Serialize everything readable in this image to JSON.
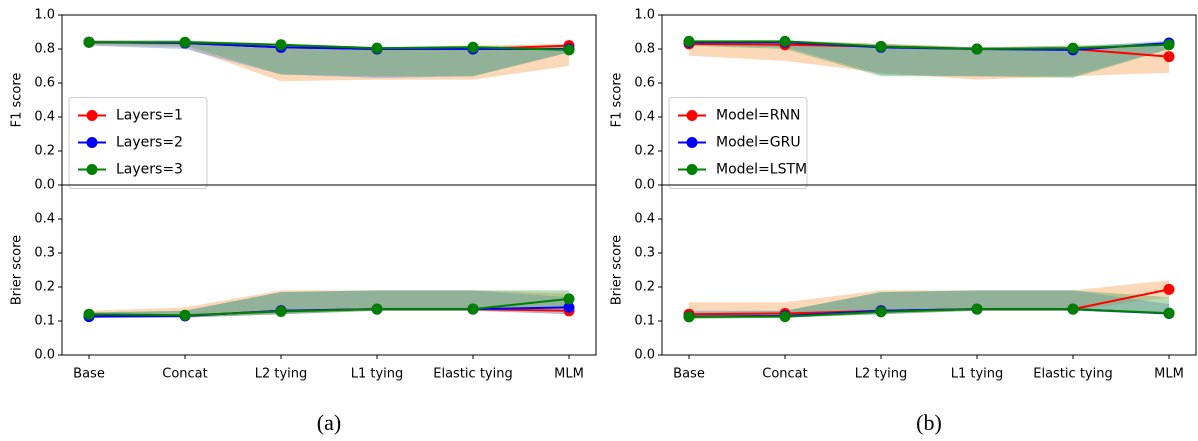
{
  "chart_data": [
    {
      "type": "line",
      "caption": "(a)",
      "categories": [
        "Base",
        "Concat",
        "L2 tying",
        "L1 tying",
        "Elastic tying",
        "MLM"
      ],
      "legend": "center left",
      "subplots": [
        {
          "ylabel": "F1 score",
          "ylim": [
            0,
            1
          ],
          "yticks": [
            {
              "value": 0,
              "label": "0.0"
            },
            0.2,
            0.4,
            0.6,
            0.8,
            {
              "value": 1,
              "label": "1.0"
            }
          ],
          "series": [
            {
              "name": "Layers=1",
              "color": "#ff0000",
              "band_color": "#f5a862",
              "values": [
                0.84,
                0.835,
                0.81,
                0.8,
                0.8,
                0.82
              ],
              "lower": [
                0.82,
                0.81,
                0.61,
                0.62,
                0.62,
                0.7
              ],
              "upper": [
                0.85,
                0.85,
                0.83,
                0.81,
                0.82,
                0.83
              ]
            },
            {
              "name": "Layers=2",
              "color": "#0000ff",
              "band_color": "#6f8fd6",
              "values": [
                0.84,
                0.835,
                0.81,
                0.8,
                0.8,
                0.8
              ],
              "lower": [
                0.82,
                0.8,
                0.65,
                0.63,
                0.64,
                0.78
              ],
              "upper": [
                0.85,
                0.85,
                0.82,
                0.81,
                0.81,
                0.82
              ]
            },
            {
              "name": "Layers=3",
              "color": "#008000",
              "band_color": "#5fae5f",
              "values": [
                0.84,
                0.84,
                0.825,
                0.805,
                0.81,
                0.795
              ],
              "lower": [
                0.83,
                0.82,
                0.65,
                0.64,
                0.64,
                0.78
              ],
              "upper": [
                0.85,
                0.85,
                0.83,
                0.81,
                0.82,
                0.81
              ]
            }
          ]
        },
        {
          "ylabel": "Brier score",
          "ylim": [
            0,
            0.5
          ],
          "yticks": [
            {
              "value": 0,
              "label": "0.0"
            },
            0.1,
            0.2,
            0.3,
            0.4
          ],
          "series": [
            {
              "color": "#ff0000",
              "band_color": "#f5a862",
              "values": [
                0.115,
                0.115,
                0.13,
                0.135,
                0.135,
                0.13
              ],
              "lower": [
                0.11,
                0.11,
                0.12,
                0.13,
                0.13,
                0.12
              ],
              "upper": [
                0.13,
                0.14,
                0.19,
                0.19,
                0.19,
                0.18
              ]
            },
            {
              "color": "#0000ff",
              "band_color": "#6f8fd6",
              "values": [
                0.113,
                0.115,
                0.13,
                0.135,
                0.135,
                0.14
              ],
              "lower": [
                0.11,
                0.11,
                0.12,
                0.13,
                0.13,
                0.12
              ],
              "upper": [
                0.125,
                0.13,
                0.185,
                0.19,
                0.19,
                0.17
              ]
            },
            {
              "color": "#008000",
              "band_color": "#5fae5f",
              "values": [
                0.12,
                0.117,
                0.128,
                0.135,
                0.135,
                0.165
              ],
              "lower": [
                0.11,
                0.11,
                0.12,
                0.13,
                0.13,
                0.14
              ],
              "upper": [
                0.125,
                0.13,
                0.185,
                0.19,
                0.19,
                0.19
              ]
            }
          ]
        }
      ]
    },
    {
      "type": "line",
      "caption": "(b)",
      "categories": [
        "Base",
        "Concat",
        "L2 tying",
        "L1 tying",
        "Elastic tying",
        "MLM"
      ],
      "legend": "center left",
      "subplots": [
        {
          "ylabel": "F1 score",
          "ylim": [
            0,
            1
          ],
          "yticks": [
            {
              "value": 0,
              "label": "0.0"
            },
            0.2,
            0.4,
            0.6,
            0.8,
            {
              "value": 1,
              "label": "1.0"
            }
          ],
          "series": [
            {
              "name": "Model=RNN",
              "color": "#ff0000",
              "band_color": "#f5a862",
              "values": [
                0.83,
                0.825,
                0.815,
                0.8,
                0.8,
                0.755
              ],
              "lower": [
                0.76,
                0.73,
                0.66,
                0.62,
                0.64,
                0.66
              ],
              "upper": [
                0.85,
                0.85,
                0.83,
                0.81,
                0.82,
                0.81
              ]
            },
            {
              "name": "Model=GRU",
              "color": "#0000ff",
              "band_color": "#6f8fd6",
              "values": [
                0.84,
                0.84,
                0.81,
                0.8,
                0.795,
                0.835
              ],
              "lower": [
                0.82,
                0.81,
                0.65,
                0.64,
                0.64,
                0.8
              ],
              "upper": [
                0.85,
                0.85,
                0.82,
                0.81,
                0.81,
                0.85
              ]
            },
            {
              "name": "Model=LSTM",
              "color": "#008000",
              "band_color": "#5fae5f",
              "values": [
                0.845,
                0.845,
                0.815,
                0.8,
                0.805,
                0.825
              ],
              "lower": [
                0.82,
                0.8,
                0.64,
                0.64,
                0.63,
                0.8
              ],
              "upper": [
                0.85,
                0.85,
                0.83,
                0.81,
                0.82,
                0.84
              ]
            }
          ]
        },
        {
          "ylabel": "Brier score",
          "ylim": [
            0,
            0.5
          ],
          "yticks": [
            {
              "value": 0,
              "label": "0.0"
            },
            0.1,
            0.2,
            0.3,
            0.4
          ],
          "series": [
            {
              "color": "#ff0000",
              "band_color": "#f5a862",
              "values": [
                0.12,
                0.122,
                0.13,
                0.135,
                0.135,
                0.193
              ],
              "lower": [
                0.11,
                0.11,
                0.12,
                0.13,
                0.13,
                0.17
              ],
              "upper": [
                0.155,
                0.155,
                0.19,
                0.19,
                0.19,
                0.22
              ]
            },
            {
              "color": "#0000ff",
              "band_color": "#6f8fd6",
              "values": [
                0.113,
                0.115,
                0.13,
                0.135,
                0.135,
                0.122
              ],
              "lower": [
                0.11,
                0.11,
                0.12,
                0.13,
                0.13,
                0.12
              ],
              "upper": [
                0.13,
                0.13,
                0.185,
                0.19,
                0.19,
                0.15
              ]
            },
            {
              "color": "#008000",
              "band_color": "#5fae5f",
              "values": [
                0.112,
                0.113,
                0.127,
                0.135,
                0.135,
                0.123
              ],
              "lower": [
                0.105,
                0.11,
                0.12,
                0.13,
                0.13,
                0.12
              ],
              "upper": [
                0.125,
                0.13,
                0.185,
                0.19,
                0.19,
                0.17
              ]
            }
          ]
        }
      ]
    }
  ]
}
